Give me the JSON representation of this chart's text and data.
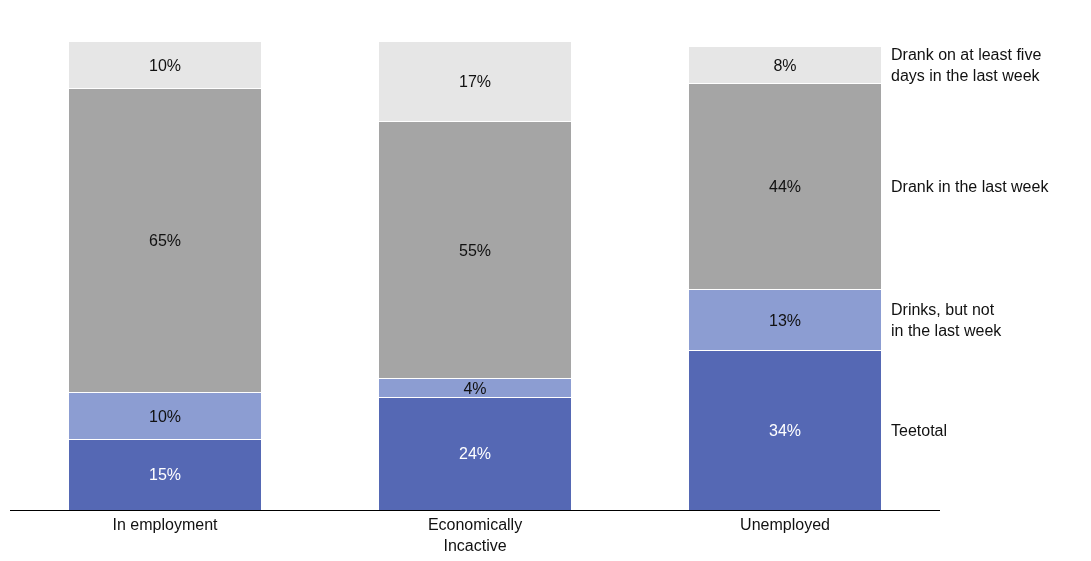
{
  "chart_data": {
    "type": "bar",
    "stacked": true,
    "categories": [
      "In employment",
      "Economically Incactive",
      "Unemployed"
    ],
    "series": [
      {
        "name": "Teetotal",
        "color": "#5568b4",
        "values": [
          15,
          24,
          34
        ],
        "value_labels": [
          "15%",
          "24%",
          "34%"
        ]
      },
      {
        "name": "Drinks, but not in the last week",
        "color": "#8c9dd2",
        "values": [
          10,
          4,
          13
        ],
        "value_labels": [
          "10%",
          "4%",
          "13%"
        ]
      },
      {
        "name": "Drank in the last week",
        "color": "#a5a5a5",
        "values": [
          65,
          55,
          44
        ],
        "value_labels": [
          "65%",
          "55%",
          "44%"
        ]
      },
      {
        "name": "Drank on at least five days in the last week",
        "color": "#e6e6e6",
        "values": [
          10,
          17,
          8
        ],
        "value_labels": [
          "10%",
          "17%",
          "8%"
        ]
      }
    ]
  }
}
